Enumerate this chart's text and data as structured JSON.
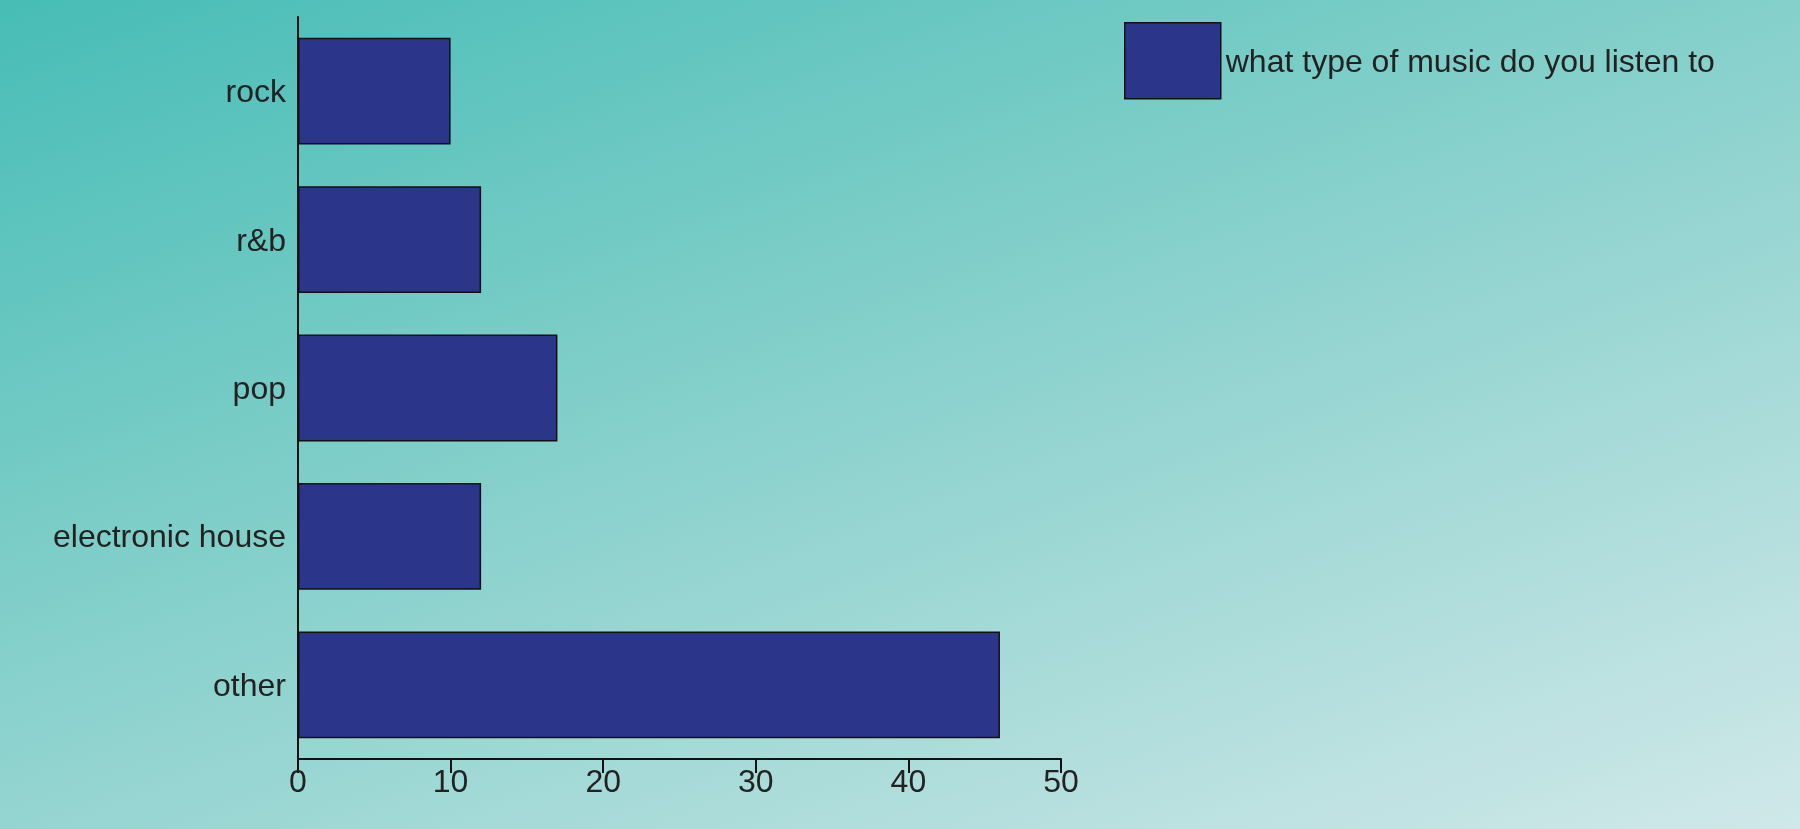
{
  "chart_data": {
    "type": "bar",
    "orientation": "horizontal",
    "categories": [
      "rock",
      "r&b",
      "pop",
      "electronic house",
      "other"
    ],
    "series": [
      {
        "name": "what type of music do you listen to",
        "color": "#2b368b",
        "values": [
          10,
          12,
          17,
          12,
          46
        ]
      }
    ],
    "xlim": [
      0,
      50
    ],
    "xticks": [
      0,
      10,
      20,
      30,
      40,
      50
    ],
    "grid": false,
    "legend": "top right"
  }
}
